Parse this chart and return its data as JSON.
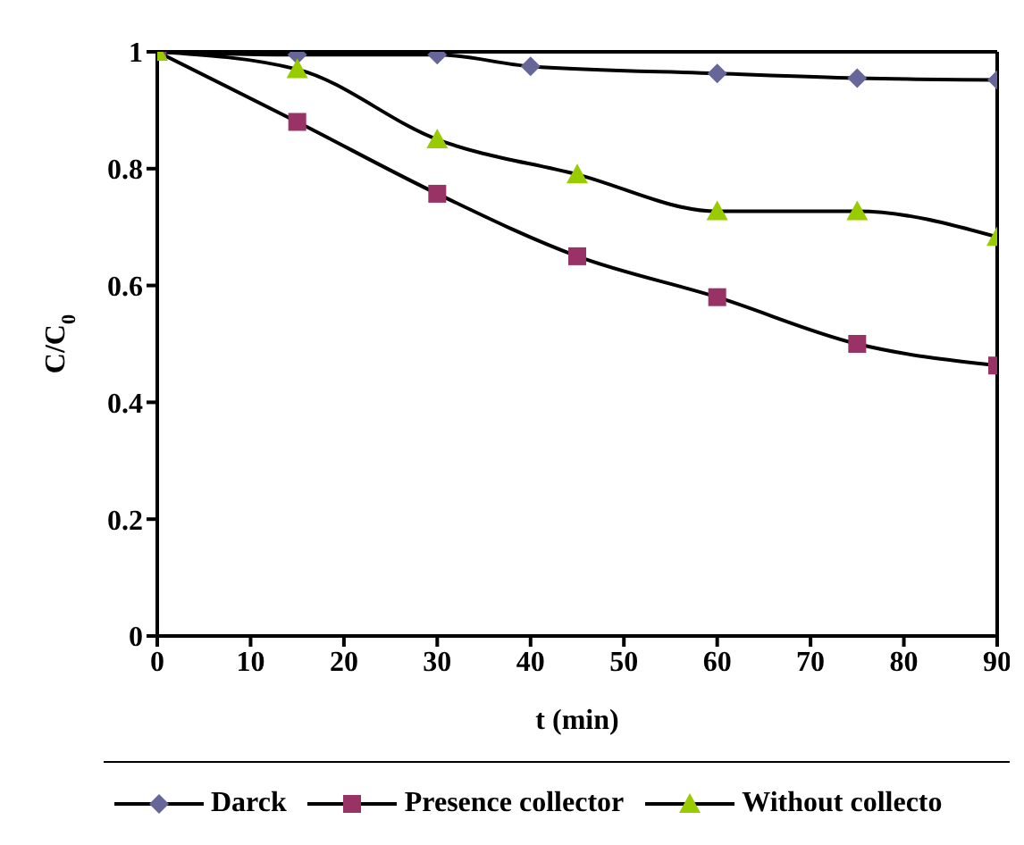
{
  "chart_data": {
    "type": "line",
    "xlabel": "t (min)",
    "ylabel": "C/C$_{0}$",
    "xlim": [
      0,
      90
    ],
    "xticks": [
      0,
      10,
      20,
      30,
      40,
      50,
      60,
      70,
      80,
      90
    ],
    "ylim": [
      0,
      1
    ],
    "yticks": [
      0,
      0.2,
      0.4,
      0.6,
      0.8,
      1
    ],
    "grid": false,
    "legend": "bottom",
    "series": [
      {
        "name": "Darck",
        "color": "#666699",
        "marker": "diamond",
        "x": [
          0,
          15,
          30,
          40,
          60,
          75,
          90
        ],
        "values": [
          1,
          0.995,
          0.995,
          0.975,
          0.963,
          0.955,
          0.952
        ]
      },
      {
        "name": "Presence collector",
        "color": "#993366",
        "marker": "square",
        "x": [
          0,
          15,
          30,
          45,
          60,
          75,
          90
        ],
        "values": [
          1,
          0.88,
          0.757,
          0.65,
          0.58,
          0.5,
          0.463
        ]
      },
      {
        "name": "Without collecto",
        "color": "#99cc00",
        "marker": "triangle",
        "x": [
          0,
          15,
          30,
          45,
          60,
          75,
          90
        ],
        "values": [
          1,
          0.97,
          0.85,
          0.79,
          0.727,
          0.727,
          0.683
        ]
      }
    ]
  }
}
